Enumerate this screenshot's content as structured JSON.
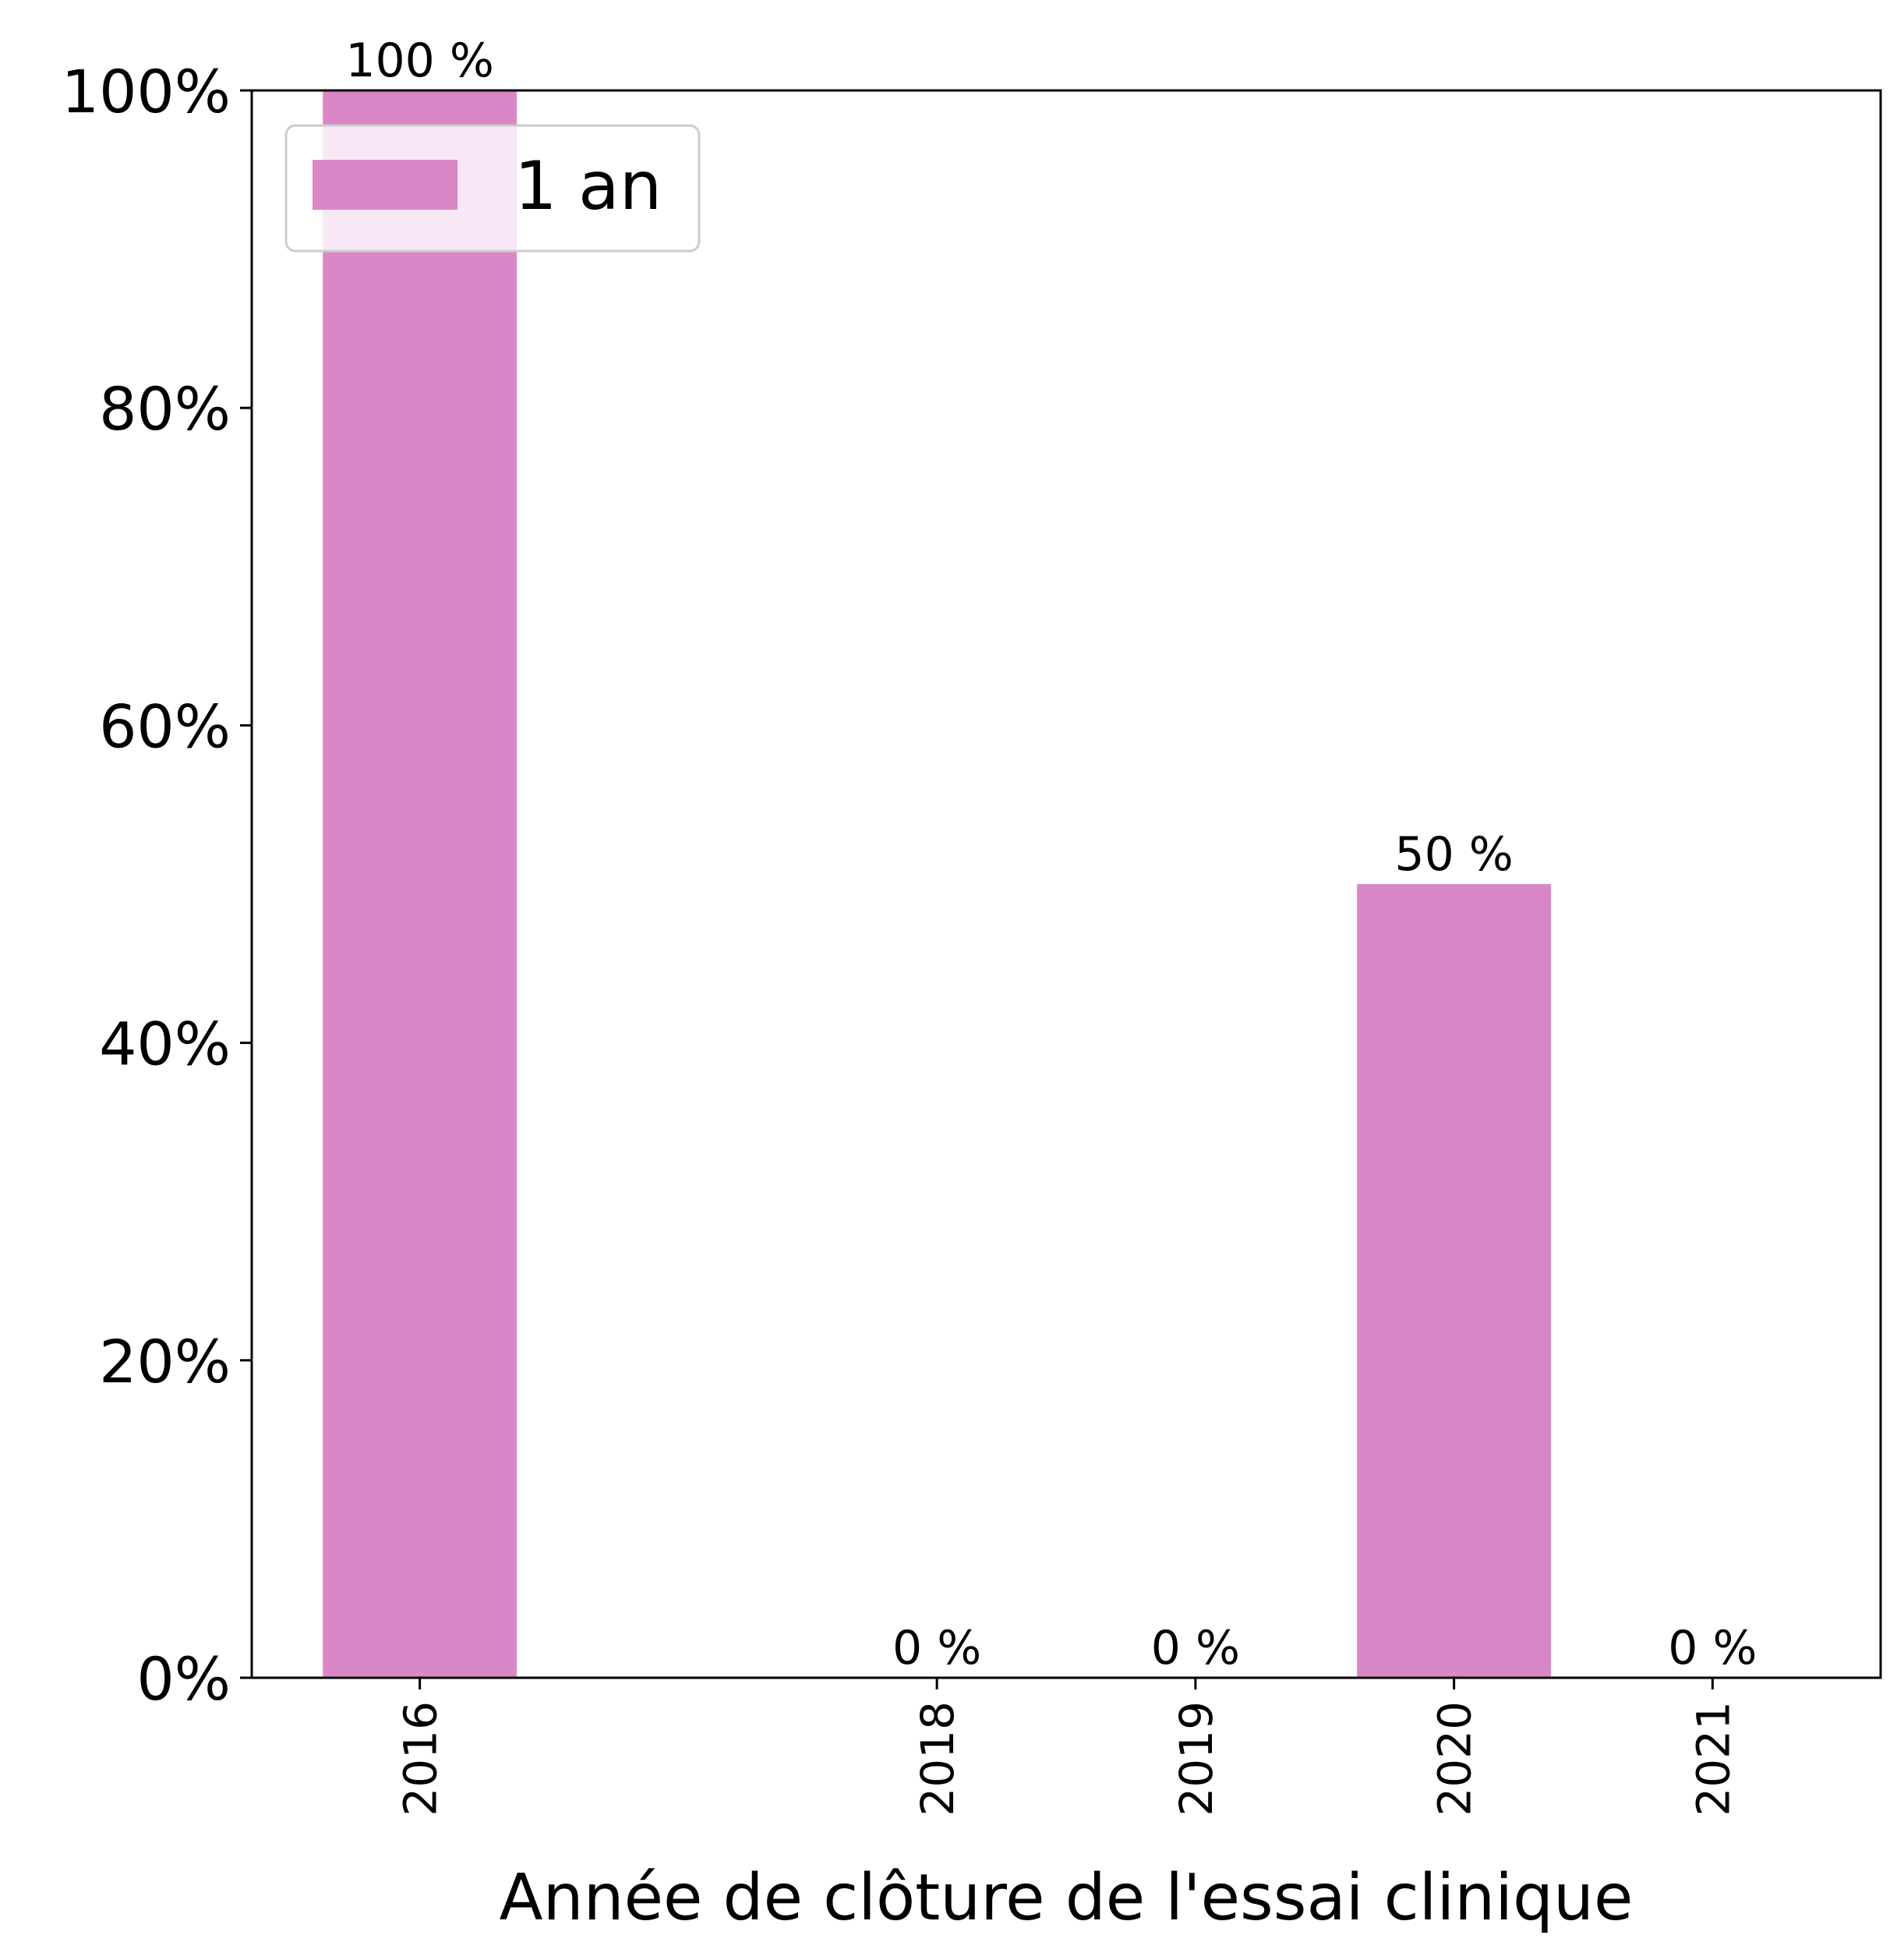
{
  "chart_data": {
    "type": "bar",
    "categories": [
      "2016",
      "2018",
      "2019",
      "2020",
      "2021"
    ],
    "x_positions": [
      2016,
      2018,
      2019,
      2020,
      2021
    ],
    "x_domain": [
      2015.35,
      2021.65
    ],
    "series": [
      {
        "name": "1 an",
        "values": [
          100,
          0,
          0,
          50,
          0
        ],
        "data_labels": [
          "100 %",
          "0 %",
          "0 %",
          "50 %",
          "0 %"
        ],
        "color": "#DA87C7"
      }
    ],
    "xlabel": "Année de clôture de l'essai clinique",
    "ylabel": "",
    "ylim": [
      0,
      100
    ],
    "yticks": [
      0,
      20,
      40,
      60,
      80,
      100
    ],
    "ytick_labels": [
      "0%",
      "20%",
      "40%",
      "60%",
      "80%",
      "100%"
    ],
    "legend": {
      "position": "top-left",
      "entries": [
        "1 an"
      ]
    },
    "grid": false
  }
}
